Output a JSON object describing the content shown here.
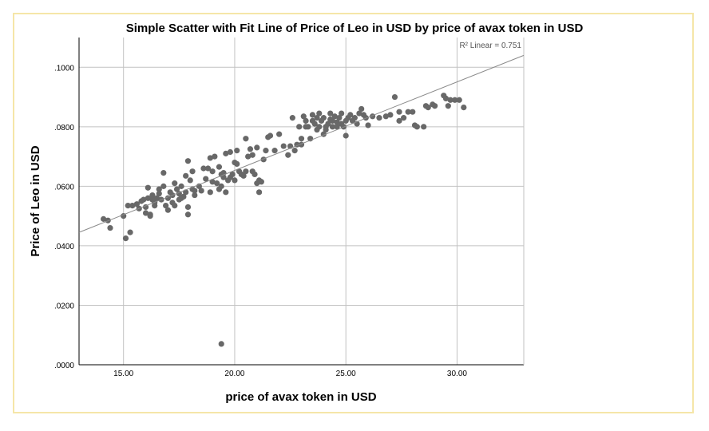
{
  "chart_data": {
    "type": "scatter",
    "title": "Simple Scatter with Fit Line of Price of Leo in USD by price of avax token in USD",
    "xlabel": "price of avax token in USD",
    "ylabel": "Price of Leo in USD",
    "xlim": [
      13.0,
      33.0
    ],
    "ylim": [
      0.0,
      0.11
    ],
    "x_ticks": [
      15,
      20,
      25,
      30
    ],
    "x_tick_labels": [
      "15.00",
      "20.00",
      "25.00",
      "30.00"
    ],
    "y_ticks": [
      0.0,
      0.02,
      0.04,
      0.06,
      0.08,
      0.1
    ],
    "y_tick_labels": [
      ".0000",
      ".0200",
      ".0400",
      ".0600",
      ".0800",
      ".1000"
    ],
    "grid": true,
    "fit_line": {
      "label": "R² Linear = 0.751",
      "x": [
        13.0,
        33.0
      ],
      "y": [
        0.0445,
        0.104
      ]
    },
    "colors": {
      "points": "#686868",
      "fit_line": "#8a8a8a",
      "grid": "#c2c2c2",
      "frame": "#f5e6a8"
    },
    "points": [
      [
        14.1,
        0.049
      ],
      [
        14.3,
        0.0485
      ],
      [
        14.4,
        0.046
      ],
      [
        15.0,
        0.05
      ],
      [
        15.1,
        0.0425
      ],
      [
        15.3,
        0.0445
      ],
      [
        15.2,
        0.0535
      ],
      [
        15.4,
        0.0535
      ],
      [
        15.6,
        0.054
      ],
      [
        15.7,
        0.0525
      ],
      [
        15.8,
        0.055
      ],
      [
        15.9,
        0.0555
      ],
      [
        16.0,
        0.053
      ],
      [
        16.0,
        0.051
      ],
      [
        16.1,
        0.056
      ],
      [
        16.1,
        0.0595
      ],
      [
        16.2,
        0.0505
      ],
      [
        16.2,
        0.05
      ],
      [
        16.3,
        0.0555
      ],
      [
        16.3,
        0.057
      ],
      [
        16.4,
        0.0545
      ],
      [
        16.4,
        0.0535
      ],
      [
        16.5,
        0.056
      ],
      [
        16.6,
        0.059
      ],
      [
        16.6,
        0.0575
      ],
      [
        16.7,
        0.0555
      ],
      [
        16.8,
        0.0645
      ],
      [
        16.8,
        0.06
      ],
      [
        16.9,
        0.0535
      ],
      [
        17.0,
        0.056
      ],
      [
        17.0,
        0.052
      ],
      [
        17.1,
        0.058
      ],
      [
        17.2,
        0.057
      ],
      [
        17.2,
        0.0545
      ],
      [
        17.3,
        0.061
      ],
      [
        17.3,
        0.0535
      ],
      [
        17.4,
        0.059
      ],
      [
        17.5,
        0.0575
      ],
      [
        17.5,
        0.0555
      ],
      [
        17.6,
        0.06
      ],
      [
        17.6,
        0.056
      ],
      [
        17.7,
        0.0565
      ],
      [
        17.8,
        0.058
      ],
      [
        17.8,
        0.0635
      ],
      [
        17.9,
        0.0685
      ],
      [
        17.9,
        0.053
      ],
      [
        17.9,
        0.0505
      ],
      [
        18.0,
        0.062
      ],
      [
        18.1,
        0.059
      ],
      [
        18.1,
        0.065
      ],
      [
        18.2,
        0.057
      ],
      [
        18.2,
        0.0585
      ],
      [
        18.4,
        0.06
      ],
      [
        18.5,
        0.0585
      ],
      [
        18.6,
        0.066
      ],
      [
        18.7,
        0.0625
      ],
      [
        18.8,
        0.066
      ],
      [
        18.9,
        0.0695
      ],
      [
        18.9,
        0.058
      ],
      [
        19.0,
        0.065
      ],
      [
        19.0,
        0.0615
      ],
      [
        19.1,
        0.07
      ],
      [
        19.2,
        0.061
      ],
      [
        19.3,
        0.0665
      ],
      [
        19.3,
        0.059
      ],
      [
        19.4,
        0.06
      ],
      [
        19.4,
        0.064
      ],
      [
        19.5,
        0.0645
      ],
      [
        19.5,
        0.063
      ],
      [
        19.6,
        0.058
      ],
      [
        19.6,
        0.071
      ],
      [
        19.7,
        0.062
      ],
      [
        19.8,
        0.0715
      ],
      [
        19.8,
        0.063
      ],
      [
        19.9,
        0.064
      ],
      [
        20.0,
        0.068
      ],
      [
        20.0,
        0.062
      ],
      [
        20.1,
        0.072
      ],
      [
        20.1,
        0.0675
      ],
      [
        20.2,
        0.065
      ],
      [
        20.3,
        0.064
      ],
      [
        20.4,
        0.0635
      ],
      [
        20.5,
        0.065
      ],
      [
        20.5,
        0.076
      ],
      [
        20.6,
        0.07
      ],
      [
        20.7,
        0.0725
      ],
      [
        20.8,
        0.0705
      ],
      [
        20.8,
        0.065
      ],
      [
        20.9,
        0.064
      ],
      [
        21.0,
        0.073
      ],
      [
        21.0,
        0.061
      ],
      [
        21.1,
        0.062
      ],
      [
        21.1,
        0.058
      ],
      [
        21.2,
        0.0615
      ],
      [
        21.3,
        0.069
      ],
      [
        21.4,
        0.072
      ],
      [
        21.5,
        0.0765
      ],
      [
        21.6,
        0.077
      ],
      [
        21.8,
        0.072
      ],
      [
        22.0,
        0.0775
      ],
      [
        22.2,
        0.0735
      ],
      [
        22.4,
        0.0705
      ],
      [
        22.5,
        0.0735
      ],
      [
        22.6,
        0.083
      ],
      [
        22.7,
        0.072
      ],
      [
        22.8,
        0.074
      ],
      [
        22.9,
        0.08
      ],
      [
        23.0,
        0.076
      ],
      [
        23.0,
        0.074
      ],
      [
        23.1,
        0.0835
      ],
      [
        23.2,
        0.082
      ],
      [
        23.2,
        0.08
      ],
      [
        23.3,
        0.08
      ],
      [
        23.4,
        0.076
      ],
      [
        23.5,
        0.084
      ],
      [
        23.5,
        0.082
      ],
      [
        23.6,
        0.081
      ],
      [
        23.7,
        0.083
      ],
      [
        23.7,
        0.079
      ],
      [
        23.8,
        0.0845
      ],
      [
        23.8,
        0.08
      ],
      [
        23.9,
        0.082
      ],
      [
        24.0,
        0.083
      ],
      [
        24.0,
        0.0775
      ],
      [
        24.1,
        0.079
      ],
      [
        24.1,
        0.08
      ],
      [
        24.2,
        0.081
      ],
      [
        24.3,
        0.0825
      ],
      [
        24.3,
        0.0845
      ],
      [
        24.4,
        0.08
      ],
      [
        24.4,
        0.082
      ],
      [
        24.5,
        0.0835
      ],
      [
        24.6,
        0.08
      ],
      [
        24.6,
        0.0815
      ],
      [
        24.7,
        0.083
      ],
      [
        24.8,
        0.0845
      ],
      [
        24.8,
        0.081
      ],
      [
        24.9,
        0.08
      ],
      [
        25.0,
        0.082
      ],
      [
        25.0,
        0.077
      ],
      [
        25.1,
        0.083
      ],
      [
        25.2,
        0.084
      ],
      [
        25.3,
        0.082
      ],
      [
        25.4,
        0.083
      ],
      [
        25.5,
        0.081
      ],
      [
        25.6,
        0.0845
      ],
      [
        25.7,
        0.086
      ],
      [
        25.8,
        0.084
      ],
      [
        25.9,
        0.083
      ],
      [
        26.0,
        0.0805
      ],
      [
        26.2,
        0.0835
      ],
      [
        26.5,
        0.083
      ],
      [
        26.8,
        0.0835
      ],
      [
        27.0,
        0.084
      ],
      [
        27.2,
        0.09
      ],
      [
        27.4,
        0.085
      ],
      [
        27.4,
        0.082
      ],
      [
        27.6,
        0.083
      ],
      [
        27.8,
        0.085
      ],
      [
        28.0,
        0.085
      ],
      [
        28.1,
        0.0805
      ],
      [
        28.2,
        0.08
      ],
      [
        28.5,
        0.08
      ],
      [
        28.6,
        0.087
      ],
      [
        28.7,
        0.0865
      ],
      [
        28.9,
        0.0875
      ],
      [
        29.0,
        0.087
      ],
      [
        29.4,
        0.0905
      ],
      [
        29.5,
        0.0895
      ],
      [
        29.6,
        0.087
      ],
      [
        29.7,
        0.089
      ],
      [
        29.9,
        0.089
      ],
      [
        30.1,
        0.089
      ],
      [
        30.3,
        0.0865
      ],
      [
        19.4,
        0.007
      ]
    ]
  }
}
